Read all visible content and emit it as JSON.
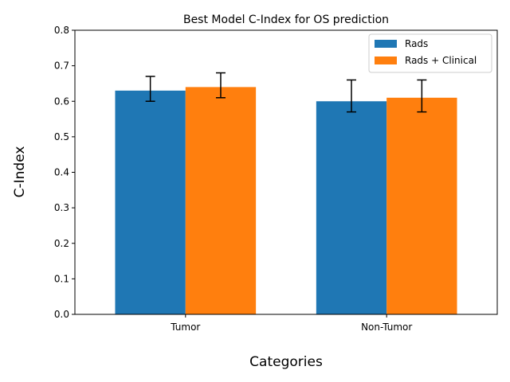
{
  "chart_data": {
    "type": "bar",
    "title": "Best Model C-Index for OS prediction",
    "xlabel": "Categories",
    "ylabel": "C-Index",
    "categories": [
      "Tumor",
      "Non-Tumor"
    ],
    "ylim": [
      0,
      0.8
    ],
    "yticks": [
      0.0,
      0.1,
      0.2,
      0.3,
      0.4,
      0.5,
      0.6,
      0.7,
      0.8
    ],
    "ytick_labels": [
      "0.0",
      "0.1",
      "0.2",
      "0.3",
      "0.4",
      "0.5",
      "0.6",
      "0.7",
      "0.8"
    ],
    "grid": false,
    "legend_position": "top-right",
    "series": [
      {
        "name": "Rads",
        "color": "#1f77b4",
        "values": [
          0.63,
          0.6
        ],
        "error_low": [
          0.6,
          0.57
        ],
        "error_high": [
          0.67,
          0.66
        ]
      },
      {
        "name": "Rads + Clinical",
        "color": "#ff7f0e",
        "values": [
          0.64,
          0.61
        ],
        "error_low": [
          0.61,
          0.57
        ],
        "error_high": [
          0.68,
          0.66
        ]
      }
    ]
  }
}
